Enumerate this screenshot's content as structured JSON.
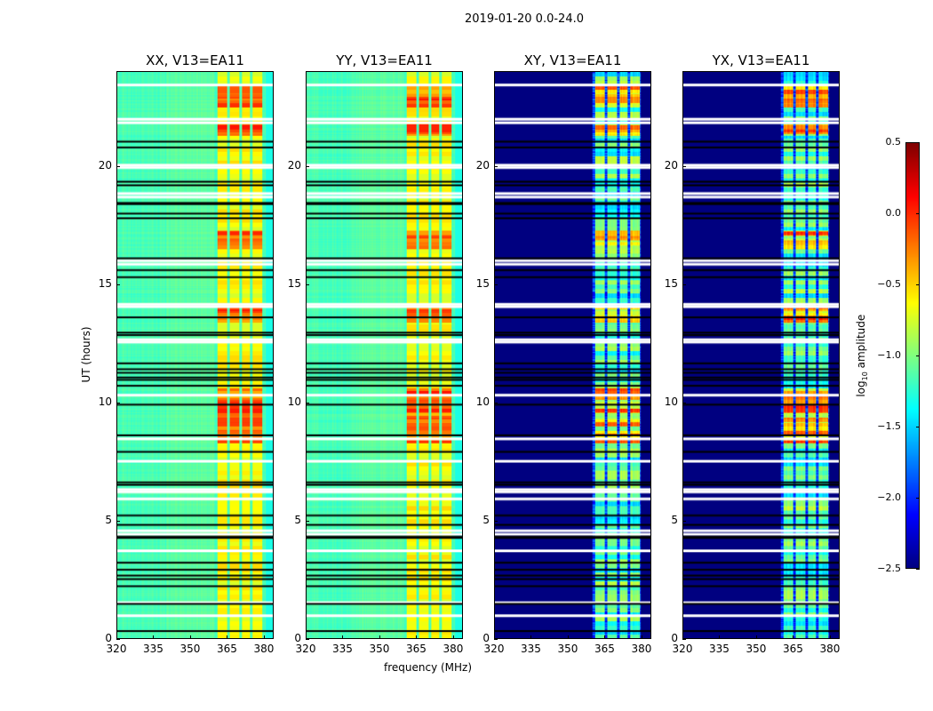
{
  "chart_data": {
    "type": "heatmap",
    "title": "2019-01-20 0.0-24.0",
    "xlabel": "frequency (MHz)",
    "ylabel": "UT (hours)",
    "xlim": [
      320,
      384
    ],
    "ylim": [
      0,
      24
    ],
    "xticks": [
      "320",
      "335",
      "350",
      "365",
      "380"
    ],
    "yticks": [
      "0",
      "5",
      "10",
      "15",
      "20"
    ],
    "panels": [
      {
        "title": "XX, V13=EA11",
        "kind": "parallel"
      },
      {
        "title": "YY, V13=EA11",
        "kind": "parallel"
      },
      {
        "title": "XY, V13=EA11",
        "kind": "cross"
      },
      {
        "title": "YX, V13=EA11",
        "kind": "cross"
      }
    ],
    "bands_mhz": [
      [
        361,
        365
      ],
      [
        366,
        370
      ],
      [
        371,
        374.5
      ],
      [
        375.5,
        379.5
      ]
    ],
    "data_extent_mhz": [
      320,
      380
    ],
    "bright_hours": [
      [
        8.3,
        10.6
      ],
      [
        13.4,
        14.1
      ],
      [
        21.3,
        21.8
      ],
      [
        16.5,
        17.3
      ],
      [
        22.5,
        23.5
      ]
    ],
    "flagged_white_hours": [
      23.45,
      22.0,
      21.85,
      20.05,
      19.95,
      18.85,
      18.7,
      16.0,
      15.85,
      14.15,
      14.05,
      12.65,
      12.55,
      10.3,
      8.45,
      7.5,
      6.3,
      6.2,
      5.9,
      4.55,
      4.4,
      3.7,
      1.5,
      0.95
    ],
    "flagged_black_hours": [
      21.05,
      20.8,
      19.35,
      19.2,
      18.45,
      18.4,
      18.0,
      17.8,
      16.1,
      15.6,
      15.3,
      13.6,
      12.95,
      12.85,
      11.65,
      11.4,
      11.25,
      11.05,
      10.95,
      10.7,
      9.9,
      8.6,
      7.9,
      6.6,
      6.5,
      5.2,
      4.8,
      4.3,
      4.25,
      3.2,
      2.9,
      2.65,
      2.5,
      2.2,
      1.45,
      0.3
    ],
    "colorbar": {
      "label": "log10 amplitude",
      "label_main": "log",
      "label_sub": "10",
      "label_rest": " amplitude",
      "range": [
        -2.5,
        0.5
      ],
      "ticks": [
        "0.5",
        "0.0",
        "−0.5",
        "−1.0",
        "−1.5",
        "−2.0",
        "−2.5"
      ],
      "colormap": "jet"
    }
  }
}
